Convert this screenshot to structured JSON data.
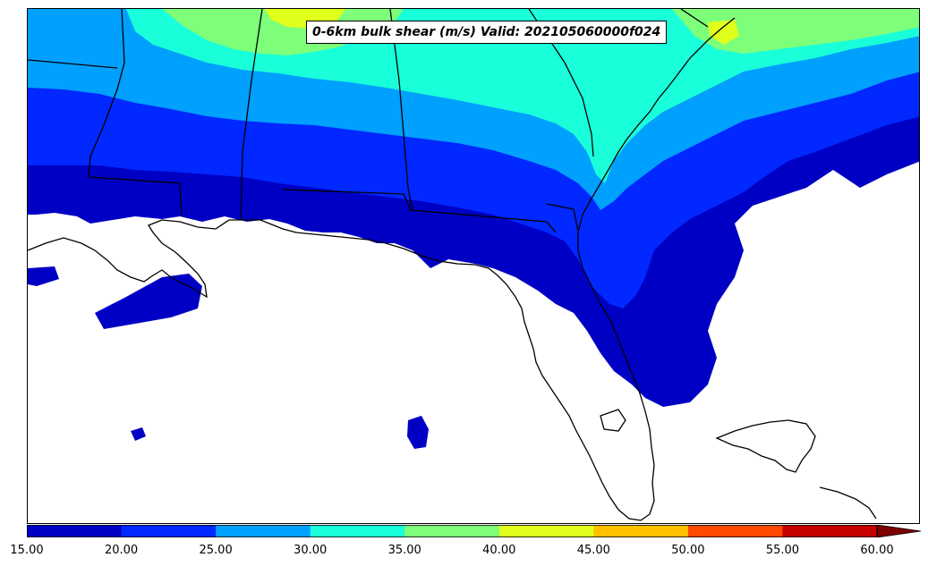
{
  "map": {
    "title": "0-6km bulk shear (m/s) Valid: 202105060000f024",
    "field": "0-6km bulk shear",
    "units": "m/s",
    "valid": "202105060000f024",
    "region": "Southeastern United States / Florida / Gulf of Mexico"
  },
  "colorbar": {
    "orientation": "horizontal",
    "extend": "max",
    "tick_labels": [
      "15.00",
      "20.00",
      "25.00",
      "30.00",
      "35.00",
      "40.00",
      "45.00",
      "50.00",
      "55.00",
      "60.00"
    ],
    "colors": [
      "#0000c4",
      "#0028ff",
      "#00a0ff",
      "#18ffda",
      "#7dff7a",
      "#e0ff1a",
      "#ffc000",
      "#ff4800",
      "#c40000"
    ],
    "extend_color": "#7f0000"
  }
}
